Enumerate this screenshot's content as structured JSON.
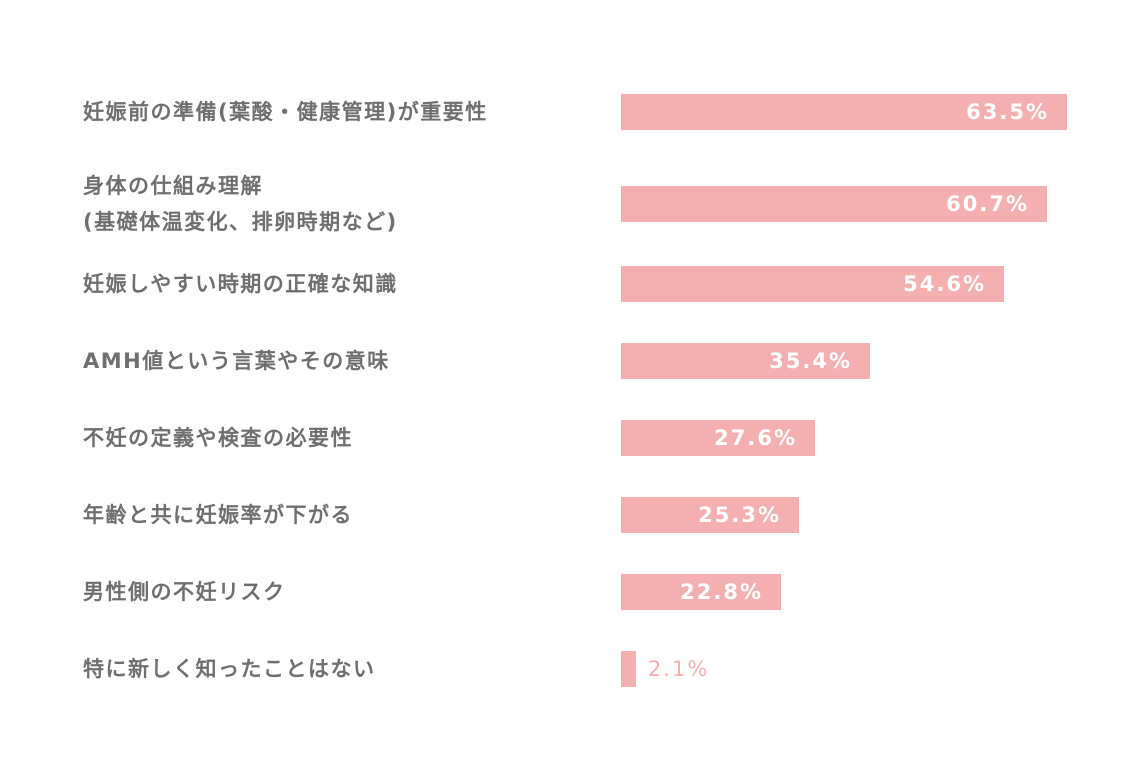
{
  "chart_data": {
    "type": "bar",
    "orientation": "horizontal",
    "title": "",
    "xlabel": "",
    "ylabel": "",
    "unit": "%",
    "grid": false,
    "legend": "none",
    "bar_color": "#f4afb0",
    "xlim": [
      0,
      70
    ],
    "categories": [
      [
        "妊娠前の準備(葉酸・健康管理)が重要性"
      ],
      [
        "身体の仕組み理解",
        "(基礎体温変化、排卵時期など)"
      ],
      [
        "妊娠しやすい時期の正確な知識"
      ],
      [
        "AMH値という言葉やその意味"
      ],
      [
        "不妊の定義や検査の必要性"
      ],
      [
        "年齢と共に妊娠率が下がる"
      ],
      [
        "男性側の不妊リスク"
      ],
      [
        "特に新しく知ったことはない"
      ]
    ],
    "values": [
      63.5,
      60.7,
      54.6,
      35.4,
      27.6,
      25.3,
      22.8,
      2.1
    ],
    "value_labels": [
      "63.5%",
      "60.7%",
      "54.6%",
      "35.4%",
      "27.6%",
      "25.3%",
      "22.8%",
      "2.1%"
    ]
  }
}
